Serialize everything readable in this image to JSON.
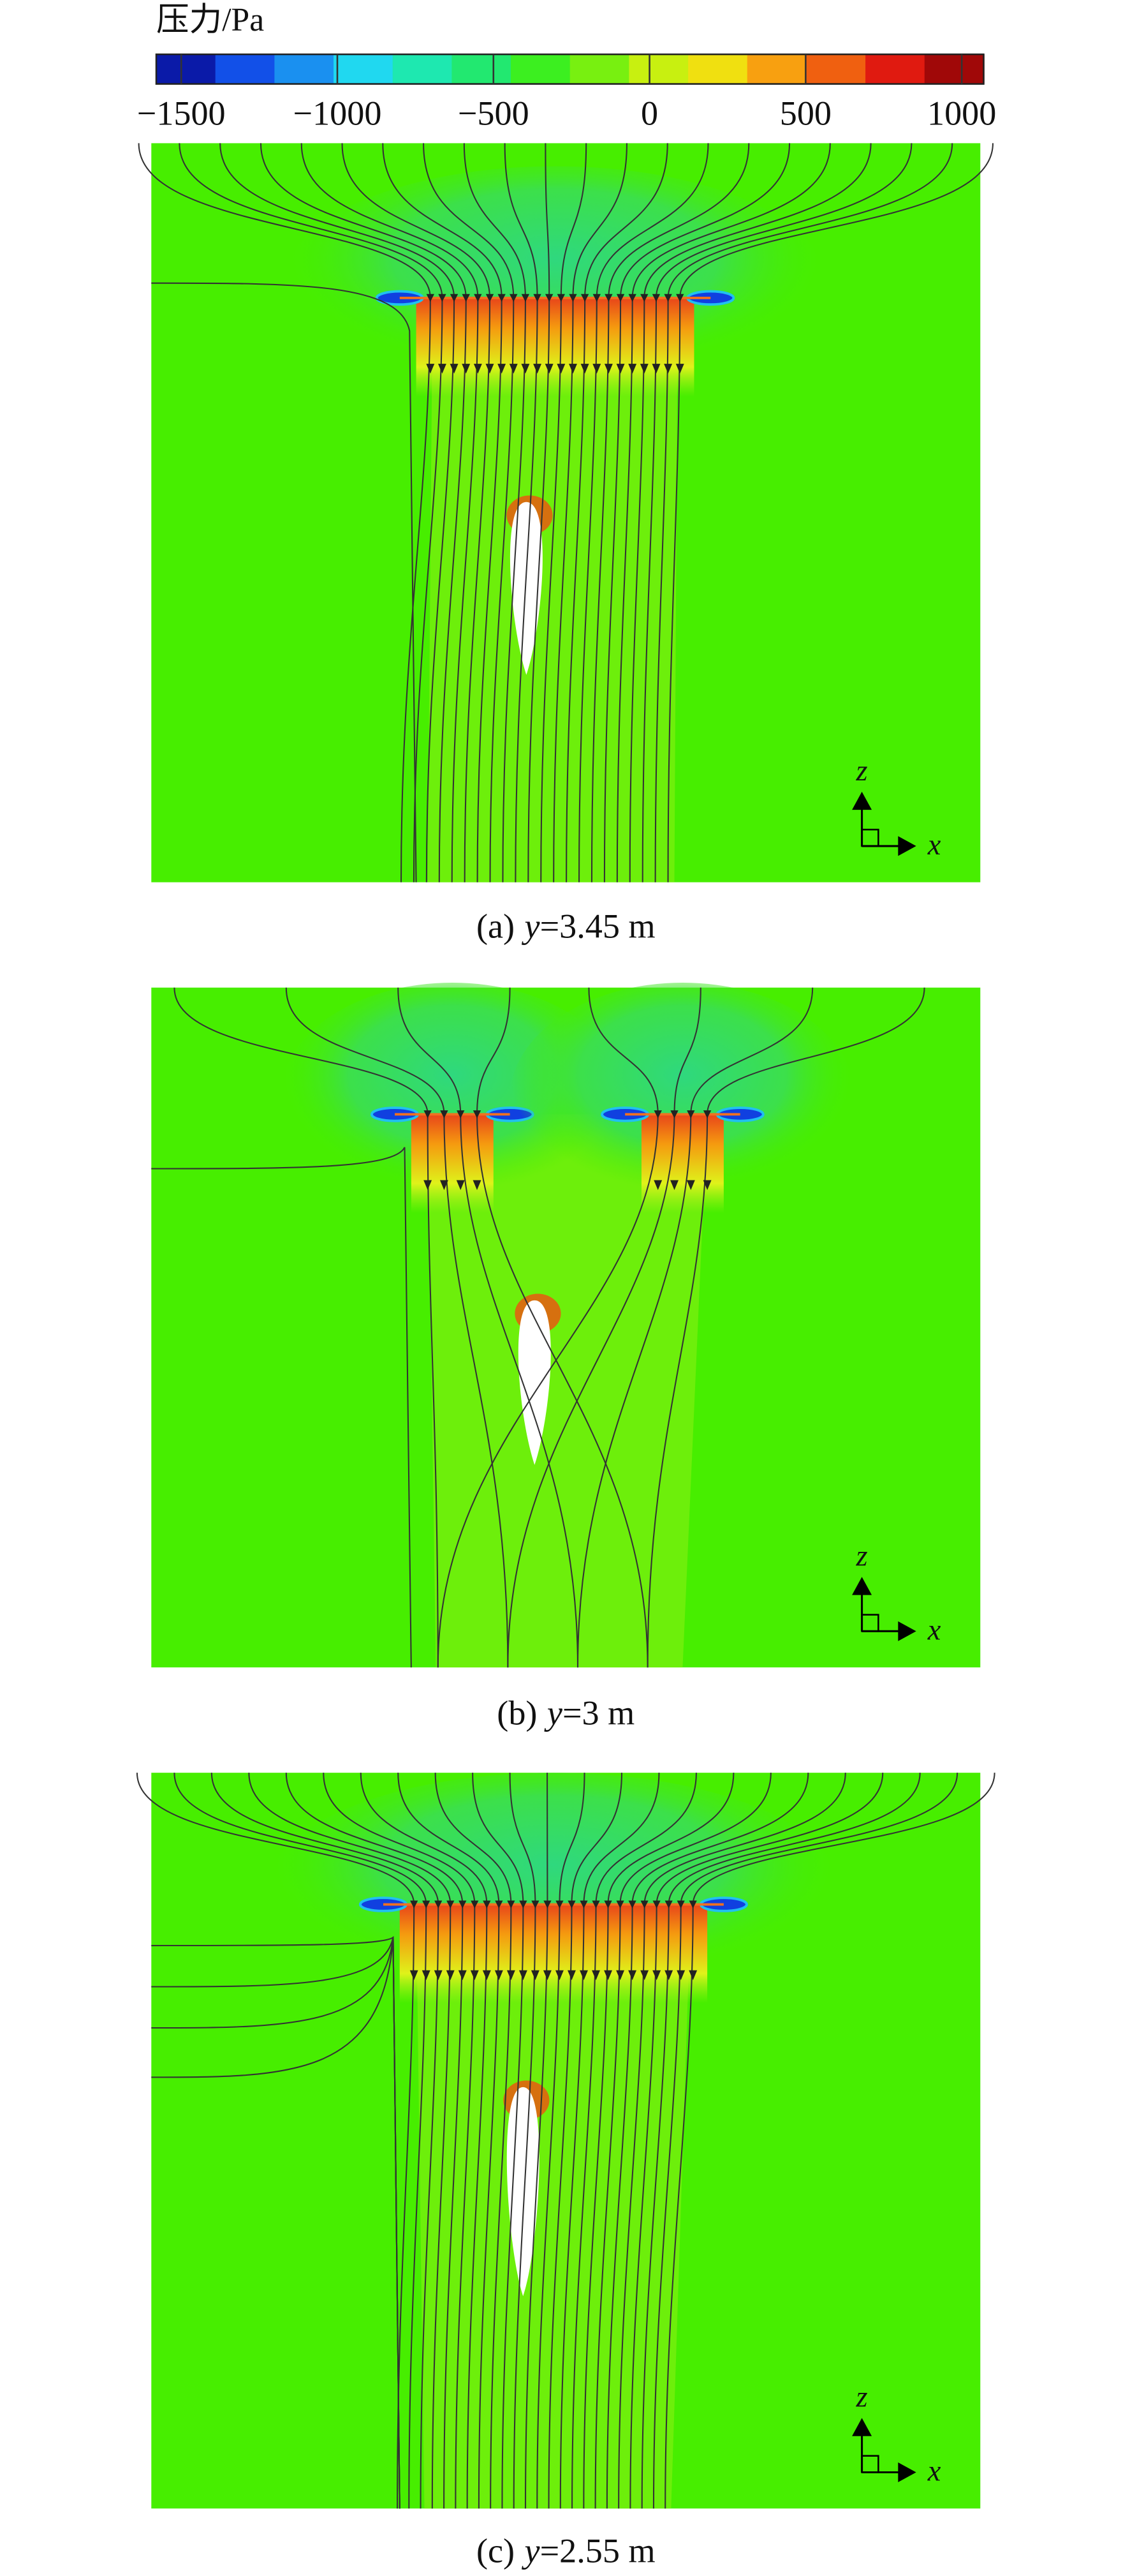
{
  "colorbar": {
    "title": "压力/Pa",
    "range": [
      -1580,
      1070
    ],
    "ticks": [
      {
        "value": -1500,
        "label": "−1500"
      },
      {
        "value": -1000,
        "label": "−1000"
      },
      {
        "value": -500,
        "label": "−500"
      },
      0,
      500,
      1000
    ]
  },
  "axis_labels": {
    "vertical": "z",
    "horizontal": "x"
  },
  "panels": [
    {
      "label": "(a)",
      "variable": "y",
      "value": "=3.45 m"
    },
    {
      "label": "(b)",
      "variable": "y",
      "value": "=3 m"
    },
    {
      "label": "(c)",
      "variable": "y",
      "value": "=2.55 m"
    }
  ]
}
